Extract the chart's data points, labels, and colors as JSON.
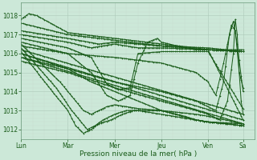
{
  "xlabel": "Pression niveau de la mer( hPa )",
  "bg_color": "#cce8d8",
  "line_color": "#1a5c1a",
  "grid_color_major": "#adc8b8",
  "grid_color_minor": "#c8ddd0",
  "ylim": [
    1011.5,
    1018.7
  ],
  "xlim": [
    0,
    120
  ],
  "days": [
    "Lun",
    "Mar",
    "Mer",
    "Jeu",
    "Ven",
    "Sa"
  ],
  "day_positions": [
    0,
    24,
    48,
    72,
    96,
    114
  ],
  "yticks": [
    1012,
    1013,
    1014,
    1015,
    1016,
    1017,
    1018
  ],
  "line_width": 0.7,
  "marker_size": 1.5,
  "font_size_ticks": 5.5,
  "font_size_xlabel": 6.5
}
